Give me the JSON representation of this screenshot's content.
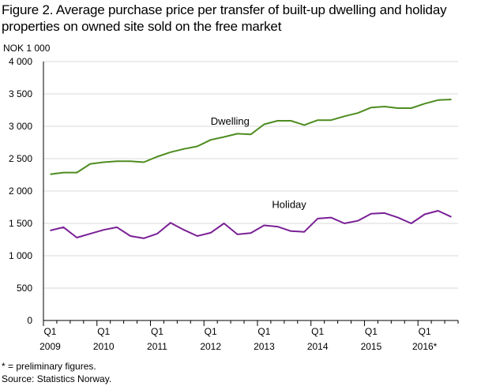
{
  "title": "Figure 2. Average purchase price per transfer of built-up dwelling and holiday properties on owned site sold on the free market",
  "unit_label": "NOK 1 000",
  "footnote": "* = preliminary figures.",
  "source": "Source: Statistics Norway.",
  "colors": {
    "dwelling": "#4d8c1f",
    "holiday": "#7a1f96",
    "grid": "#d9d9d9",
    "axis": "#000000"
  },
  "chart_data": {
    "type": "line",
    "title": "Figure 2. Average purchase price per transfer of built-up dwelling and holiday properties on owned site sold on the free market",
    "xlabel": "",
    "ylabel": "NOK 1 000",
    "ylim": [
      0,
      4000
    ],
    "y_ticks": [
      0,
      500,
      1000,
      1500,
      2000,
      2500,
      3000,
      3500,
      4000
    ],
    "y_tick_labels": [
      "0",
      "500",
      "1 000",
      "1 500",
      "2 000",
      "2 500",
      "3 000",
      "3 500",
      "4 000"
    ],
    "x": [
      "2009Q1",
      "2009Q2",
      "2009Q3",
      "2009Q4",
      "2010Q1",
      "2010Q2",
      "2010Q3",
      "2010Q4",
      "2011Q1",
      "2011Q2",
      "2011Q3",
      "2011Q4",
      "2012Q1",
      "2012Q2",
      "2012Q3",
      "2012Q4",
      "2013Q1",
      "2013Q2",
      "2013Q3",
      "2013Q4",
      "2014Q1",
      "2014Q2",
      "2014Q3",
      "2014Q4",
      "2015Q1",
      "2015Q2",
      "2015Q3",
      "2015Q4",
      "2016Q1",
      "2016Q2",
      "2016Q3"
    ],
    "x_tick_labels": [
      {
        "q": "Q1",
        "year": "2009"
      },
      {
        "q": "Q1",
        "year": "2010"
      },
      {
        "q": "Q1",
        "year": "2011"
      },
      {
        "q": "Q1",
        "year": "2012"
      },
      {
        "q": "Q1",
        "year": "2013"
      },
      {
        "q": "Q1",
        "year": "2014"
      },
      {
        "q": "Q1",
        "year": "2015"
      },
      {
        "q": "Q1",
        "year": "2016*"
      }
    ],
    "grid": true,
    "legend": "inline labels",
    "series": [
      {
        "name": "Dwelling",
        "values": [
          2260,
          2285,
          2285,
          2420,
          2445,
          2460,
          2460,
          2445,
          2530,
          2600,
          2650,
          2690,
          2790,
          2835,
          2885,
          2875,
          3030,
          3085,
          3085,
          3020,
          3095,
          3095,
          3155,
          3205,
          3290,
          3305,
          3280,
          3280,
          3350,
          3405,
          3415
        ]
      },
      {
        "name": "Holiday",
        "values": [
          1390,
          1440,
          1280,
          1340,
          1400,
          1440,
          1305,
          1270,
          1340,
          1510,
          1400,
          1305,
          1355,
          1500,
          1330,
          1350,
          1470,
          1450,
          1380,
          1370,
          1575,
          1590,
          1500,
          1540,
          1650,
          1660,
          1590,
          1500,
          1640,
          1695,
          1600
        ]
      }
    ]
  }
}
